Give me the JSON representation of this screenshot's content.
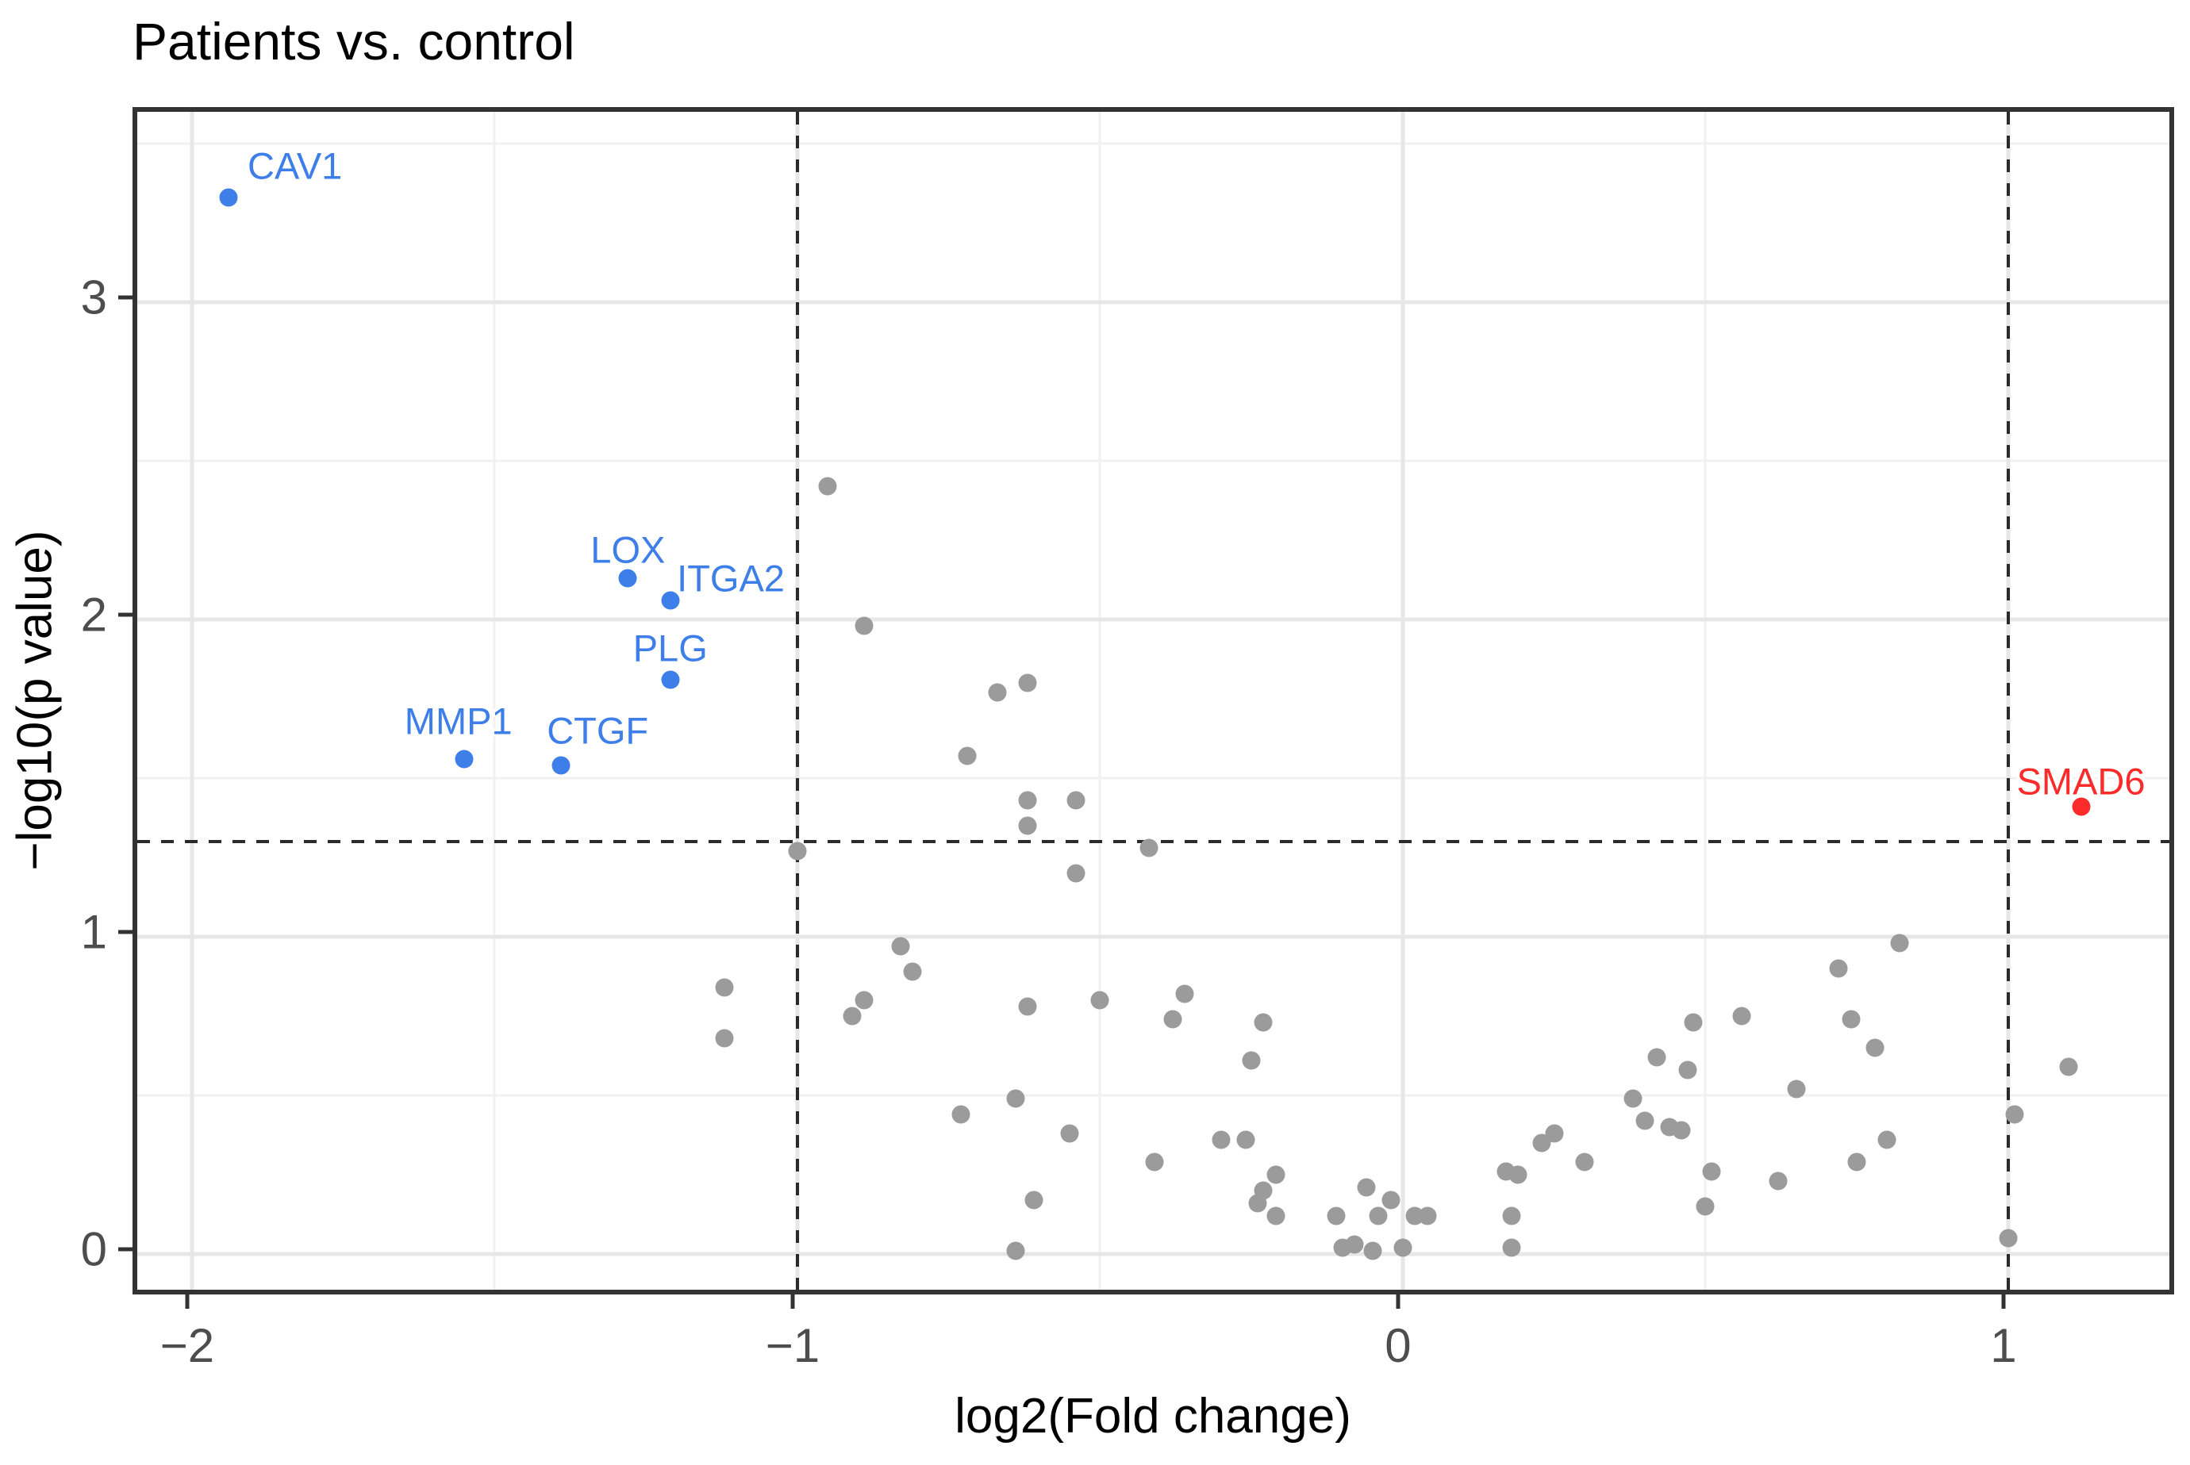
{
  "title": "Patients vs. control",
  "chart_data": {
    "type": "scatter",
    "title": "Patients vs. control",
    "xlabel": "log2(Fold change)",
    "ylabel": "−log10(p value)",
    "xlim": [
      -2.0904,
      1.2818
    ],
    "ylim": [
      -0.1425,
      3.6
    ],
    "grid": true,
    "legend_position": "none",
    "x_ticks": [
      {
        "v": -2,
        "label": "−2"
      },
      {
        "v": -1,
        "label": "−1"
      },
      {
        "v": 0,
        "label": "0"
      },
      {
        "v": 1,
        "label": "1"
      }
    ],
    "y_ticks": [
      {
        "v": 3,
        "label": "3"
      },
      {
        "v": 2,
        "label": "2"
      },
      {
        "v": 1,
        "label": "1"
      },
      {
        "v": 0,
        "label": "0"
      }
    ],
    "x_minor_gridlines": [
      -1.5,
      -0.5,
      0.5
    ],
    "y_minor_gridlines": [
      0.5,
      1.5,
      2.5,
      3.5
    ],
    "threshold_lines": {
      "style": "dashed",
      "vertical_x": [
        -1,
        1
      ],
      "horizontal_y": 1.301
    },
    "colors": {
      "nonsignificant": "#9b9b9b",
      "down_labeled": "#3d7ee9",
      "up_labeled": "#fb2b2b"
    },
    "series": [
      {
        "name": "nonsignificant",
        "color": "#9b9b9b",
        "points": [
          [
            -0.95,
            2.42
          ],
          [
            -0.89,
            1.98
          ],
          [
            -0.67,
            1.77
          ],
          [
            -0.62,
            1.8
          ],
          [
            -0.72,
            1.57
          ],
          [
            -1.0,
            1.27
          ],
          [
            -0.62,
            1.43
          ],
          [
            -0.54,
            1.43
          ],
          [
            -0.62,
            1.35
          ],
          [
            -0.42,
            1.28
          ],
          [
            -0.54,
            1.2
          ],
          [
            -1.12,
            0.84
          ],
          [
            -1.12,
            0.68
          ],
          [
            -0.83,
            0.97
          ],
          [
            -0.81,
            0.89
          ],
          [
            -0.89,
            0.8
          ],
          [
            -0.91,
            0.75
          ],
          [
            -0.62,
            0.78
          ],
          [
            -0.64,
            0.49
          ],
          [
            -0.73,
            0.44
          ],
          [
            -0.61,
            0.17
          ],
          [
            -0.64,
            0.01
          ],
          [
            -0.5,
            0.8
          ],
          [
            -0.36,
            0.82
          ],
          [
            -0.38,
            0.74
          ],
          [
            -0.23,
            0.73
          ],
          [
            -0.25,
            0.61
          ],
          [
            -0.55,
            0.38
          ],
          [
            -0.3,
            0.36
          ],
          [
            -0.26,
            0.36
          ],
          [
            -0.41,
            0.29
          ],
          [
            -0.21,
            0.25
          ],
          [
            -0.23,
            0.2
          ],
          [
            -0.24,
            0.16
          ],
          [
            -0.21,
            0.12
          ],
          [
            -0.11,
            0.12
          ],
          [
            -0.06,
            0.21
          ],
          [
            -0.02,
            0.17
          ],
          [
            -0.04,
            0.12
          ],
          [
            0.02,
            0.12
          ],
          [
            0.04,
            0.12
          ],
          [
            -0.1,
            0.02
          ],
          [
            -0.08,
            0.03
          ],
          [
            -0.05,
            0.01
          ],
          [
            0.0,
            0.02
          ],
          [
            0.17,
            0.26
          ],
          [
            0.19,
            0.25
          ],
          [
            0.18,
            0.12
          ],
          [
            0.18,
            0.02
          ],
          [
            0.23,
            0.35
          ],
          [
            0.25,
            0.38
          ],
          [
            0.3,
            0.29
          ],
          [
            0.38,
            0.49
          ],
          [
            0.4,
            0.42
          ],
          [
            0.44,
            0.4
          ],
          [
            0.46,
            0.39
          ],
          [
            0.42,
            0.62
          ],
          [
            0.47,
            0.58
          ],
          [
            0.48,
            0.73
          ],
          [
            0.56,
            0.75
          ],
          [
            0.51,
            0.26
          ],
          [
            0.62,
            0.23
          ],
          [
            0.5,
            0.15
          ],
          [
            0.65,
            0.52
          ],
          [
            0.72,
            0.9
          ],
          [
            0.74,
            0.74
          ],
          [
            0.78,
            0.65
          ],
          [
            0.8,
            0.36
          ],
          [
            0.75,
            0.29
          ],
          [
            0.82,
            0.98
          ],
          [
            1.01,
            0.44
          ],
          [
            1.1,
            0.59
          ],
          [
            1.0,
            0.05
          ]
        ]
      },
      {
        "name": "down_labeled",
        "color": "#3d7ee9",
        "labeled_points": [
          {
            "gene": "CAV1",
            "x": -1.94,
            "y": 3.33,
            "label_x": -1.83,
            "label_y": 3.43
          },
          {
            "gene": "LOX",
            "x": -1.28,
            "y": 2.13,
            "label_x": -1.28,
            "label_y": 2.22
          },
          {
            "gene": "ITGA2",
            "x": -1.21,
            "y": 2.06,
            "label_x": -1.11,
            "label_y": 2.13
          },
          {
            "gene": "PLG",
            "x": -1.21,
            "y": 1.81,
            "label_x": -1.21,
            "label_y": 1.91
          },
          {
            "gene": "MMP1",
            "x": -1.55,
            "y": 1.56,
            "label_x": -1.56,
            "label_y": 1.68
          },
          {
            "gene": "CTGF",
            "x": -1.39,
            "y": 1.54,
            "label_x": -1.33,
            "label_y": 1.65
          }
        ]
      },
      {
        "name": "up_labeled",
        "color": "#fb2b2b",
        "labeled_points": [
          {
            "gene": "SMAD6",
            "x": 1.12,
            "y": 1.41,
            "label_x": 1.12,
            "label_y": 1.49
          }
        ]
      }
    ]
  }
}
